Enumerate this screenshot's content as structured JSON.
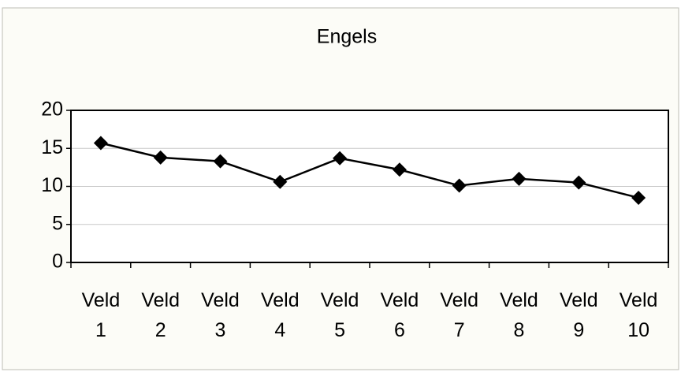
{
  "chart_data": {
    "type": "line",
    "title": "Engels",
    "categories": [
      "Veld 1",
      "Veld 2",
      "Veld 3",
      "Veld 4",
      "Veld 5",
      "Veld 6",
      "Veld 7",
      "Veld 8",
      "Veld 9",
      "Veld 10"
    ],
    "values": [
      15.7,
      13.8,
      13.3,
      10.6,
      13.7,
      12.2,
      10.1,
      11.0,
      10.5,
      8.5
    ],
    "color": "#000000",
    "ylim": [
      0,
      20
    ],
    "yticks": [
      0,
      5,
      10,
      15,
      20
    ],
    "grid": true
  }
}
